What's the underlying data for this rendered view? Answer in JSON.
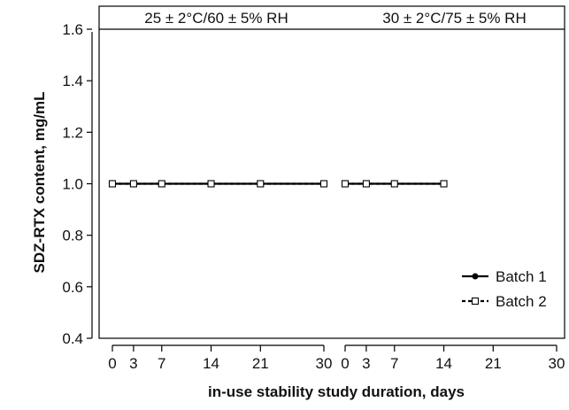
{
  "chart_data": {
    "type": "line",
    "ylabel": "SDZ-RTX content, mg/mL",
    "xlabel": "in-use stability study duration, days",
    "ylim": [
      0.4,
      1.6
    ],
    "yticks": [
      "0.4",
      "0.6",
      "0.8",
      "1.0",
      "1.2",
      "1.4",
      "1.6"
    ],
    "legend_position": "lower-right",
    "grid": false,
    "panels": [
      {
        "label": "25 ± 2°C/60 ± 5% RH",
        "xlim": [
          0,
          30
        ],
        "xticks": [
          "0",
          "3",
          "7",
          "14",
          "21",
          "30"
        ],
        "series": [
          {
            "name": "Batch 1",
            "marker": "filled-circle",
            "x": [
              0,
              3,
              7,
              14,
              21,
              30
            ],
            "y": [
              1.0,
              1.0,
              1.0,
              1.0,
              1.0,
              1.0
            ]
          },
          {
            "name": "Batch 2",
            "marker": "open-square",
            "x": [
              0,
              3,
              7,
              14,
              21,
              30
            ],
            "y": [
              1.0,
              1.0,
              1.0,
              1.0,
              1.0,
              1.0
            ]
          }
        ]
      },
      {
        "label": "30 ± 2°C/75 ± 5% RH",
        "xlim": [
          0,
          30
        ],
        "xticks": [
          "0",
          "3",
          "7",
          "14",
          "21",
          "30"
        ],
        "series": [
          {
            "name": "Batch 1",
            "marker": "filled-circle",
            "x": [
              0,
              3,
              7,
              14
            ],
            "y": [
              1.0,
              1.0,
              1.0,
              1.0
            ]
          },
          {
            "name": "Batch 2",
            "marker": "open-square",
            "x": [
              0,
              3,
              7,
              14
            ],
            "y": [
              1.0,
              1.0,
              1.0,
              1.0
            ]
          }
        ]
      }
    ]
  }
}
